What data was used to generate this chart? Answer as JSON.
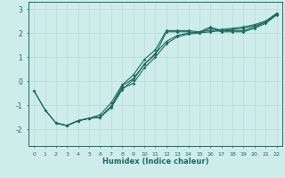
{
  "xlabel": "Humidex (Indice chaleur)",
  "x_ticks": [
    0,
    1,
    2,
    3,
    4,
    5,
    6,
    7,
    8,
    9,
    10,
    11,
    12,
    13,
    14,
    15,
    16,
    17,
    18,
    19,
    20,
    21,
    22
  ],
  "ylim": [
    -2.7,
    3.3
  ],
  "xlim": [
    -0.5,
    22.5
  ],
  "background_color": "#ceecea",
  "line_color": "#1a6b60",
  "grid_color": "#b8dbd8",
  "line1_x": [
    0,
    1,
    2,
    3,
    4,
    5,
    6,
    7,
    8,
    9,
    10,
    11,
    12,
    13,
    14,
    15,
    16,
    17,
    18,
    19,
    20,
    21,
    22
  ],
  "line1_y": [
    -0.4,
    -1.2,
    -1.75,
    -1.85,
    -1.65,
    -1.55,
    -1.5,
    -1.1,
    -0.35,
    0.05,
    0.7,
    1.1,
    2.05,
    2.05,
    2.05,
    2.0,
    2.2,
    2.05,
    2.05,
    2.05,
    2.2,
    2.4,
    2.75
  ],
  "line2_x": [
    2,
    3,
    4,
    5,
    6,
    7,
    8,
    9,
    10,
    11,
    12,
    13,
    14,
    15,
    16,
    17,
    18,
    19,
    20,
    21,
    22
  ],
  "line2_y": [
    -1.75,
    -1.85,
    -1.65,
    -1.55,
    -1.5,
    -1.05,
    -0.3,
    -0.1,
    0.55,
    1.0,
    1.55,
    1.85,
    1.95,
    2.0,
    2.05,
    2.1,
    2.15,
    2.2,
    2.3,
    2.45,
    2.8
  ],
  "line3_x": [
    2,
    3,
    4,
    5,
    6,
    7,
    8,
    9,
    10,
    11,
    12,
    13,
    14,
    15,
    16,
    17,
    18,
    19,
    20,
    21,
    22
  ],
  "line3_y": [
    -1.75,
    -1.85,
    -1.65,
    -1.55,
    -1.5,
    -1.05,
    -0.2,
    0.1,
    0.7,
    1.15,
    1.65,
    1.9,
    2.0,
    2.05,
    2.1,
    2.15,
    2.2,
    2.25,
    2.35,
    2.5,
    2.82
  ],
  "line4_x": [
    0,
    1,
    2,
    3,
    4,
    5,
    6,
    7,
    8,
    9,
    10,
    11,
    12,
    13,
    14,
    15,
    16,
    17,
    18,
    19,
    20,
    21,
    22
  ],
  "line4_y": [
    -0.4,
    -1.2,
    -1.75,
    -1.85,
    -1.65,
    -1.55,
    -1.4,
    -0.9,
    -0.15,
    0.25,
    0.9,
    1.3,
    2.1,
    2.1,
    2.1,
    2.05,
    2.25,
    2.1,
    2.1,
    2.1,
    2.25,
    2.45,
    2.78
  ],
  "yticks": [
    -2,
    -1,
    0,
    1,
    2,
    3
  ],
  "marker": "D",
  "markersize": 1.8,
  "linewidth": 0.8
}
